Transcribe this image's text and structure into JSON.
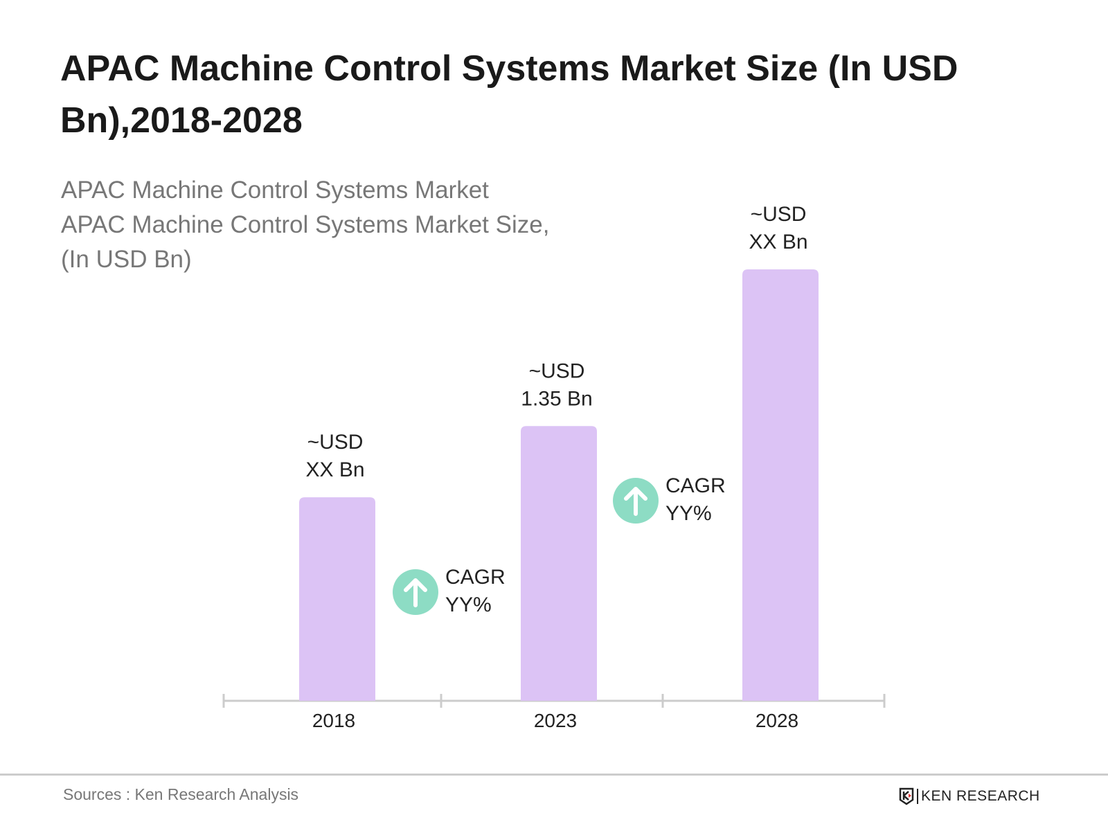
{
  "chart_data": {
    "type": "bar",
    "title": "APAC Machine Control Systems Market Size (In USD Bn),2018-2028",
    "subtitle_lines": [
      "APAC Machine Control Systems Market",
      "APAC Machine Control Systems Market Size,",
      "(In USD Bn)"
    ],
    "categories": [
      "2018",
      "2023",
      "2028"
    ],
    "values": [
      1.0,
      1.35,
      2.12
    ],
    "data_labels": [
      [
        "~USD",
        "XX Bn"
      ],
      [
        "~USD",
        "1.35 Bn"
      ],
      [
        "~USD",
        "XX Bn"
      ]
    ],
    "annotations": [
      {
        "between": [
          "2018",
          "2023"
        ],
        "icon": "arrow-up-circle-icon",
        "lines": [
          "CAGR",
          "YY%"
        ]
      },
      {
        "between": [
          "2023",
          "2028"
        ],
        "icon": "arrow-up-circle-icon",
        "lines": [
          "CAGR",
          "YY%"
        ]
      }
    ],
    "ylim": [
      0,
      2.12
    ],
    "grid": false,
    "colors": {
      "bar": "#dcc3f5",
      "cagr_circle": "#8ddcc4",
      "axis": "#cccccc"
    }
  },
  "footer": {
    "sources": "Sources : Ken Research Analysis",
    "logo": "KEN RESEARCH"
  }
}
